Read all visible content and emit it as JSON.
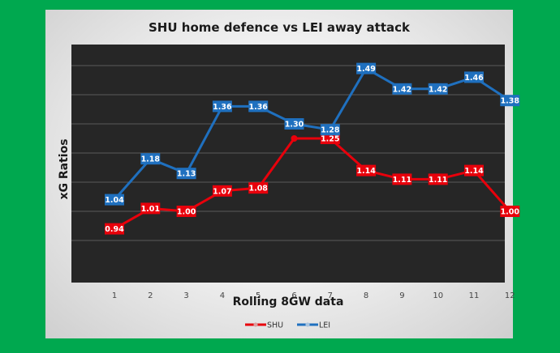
{
  "colors": {
    "background": "#00a84f",
    "plot": "#262626",
    "shu": "#e8000b",
    "lei": "#1f70bf"
  },
  "chart_data": {
    "type": "line",
    "title": "SHU home defence vs LEI away attack",
    "xlabel": "Rolling 8GW data",
    "ylabel": "xG Ratios",
    "categories": [
      "1",
      "2",
      "3",
      "4",
      "5",
      "6",
      "7",
      "8",
      "9",
      "10",
      "11",
      "12"
    ],
    "ylim": [
      0,
      1.7
    ],
    "grid": true,
    "legend": "bottom",
    "series": [
      {
        "name": "SHU",
        "values": [
          0.94,
          1.01,
          1.0,
          1.07,
          1.08,
          1.25,
          1.25,
          1.14,
          1.11,
          1.11,
          1.14,
          1.0
        ],
        "labels": [
          "0.94",
          "1.01",
          "1.00",
          "1.07",
          "1.08",
          "",
          "1.25",
          "1.14",
          "1.11",
          "1.11",
          "1.14",
          "1.00"
        ],
        "color": "#e8000b"
      },
      {
        "name": "LEI",
        "values": [
          1.04,
          1.18,
          1.13,
          1.36,
          1.36,
          1.3,
          1.28,
          1.49,
          1.42,
          1.42,
          1.46,
          1.38
        ],
        "labels": [
          "1.04",
          "1.18",
          "1.13",
          "1.36",
          "1.36",
          "1.30",
          "1.28",
          "1.49",
          "1.42",
          "1.42",
          "1.46",
          "1.38"
        ],
        "color": "#1f70bf"
      }
    ]
  }
}
